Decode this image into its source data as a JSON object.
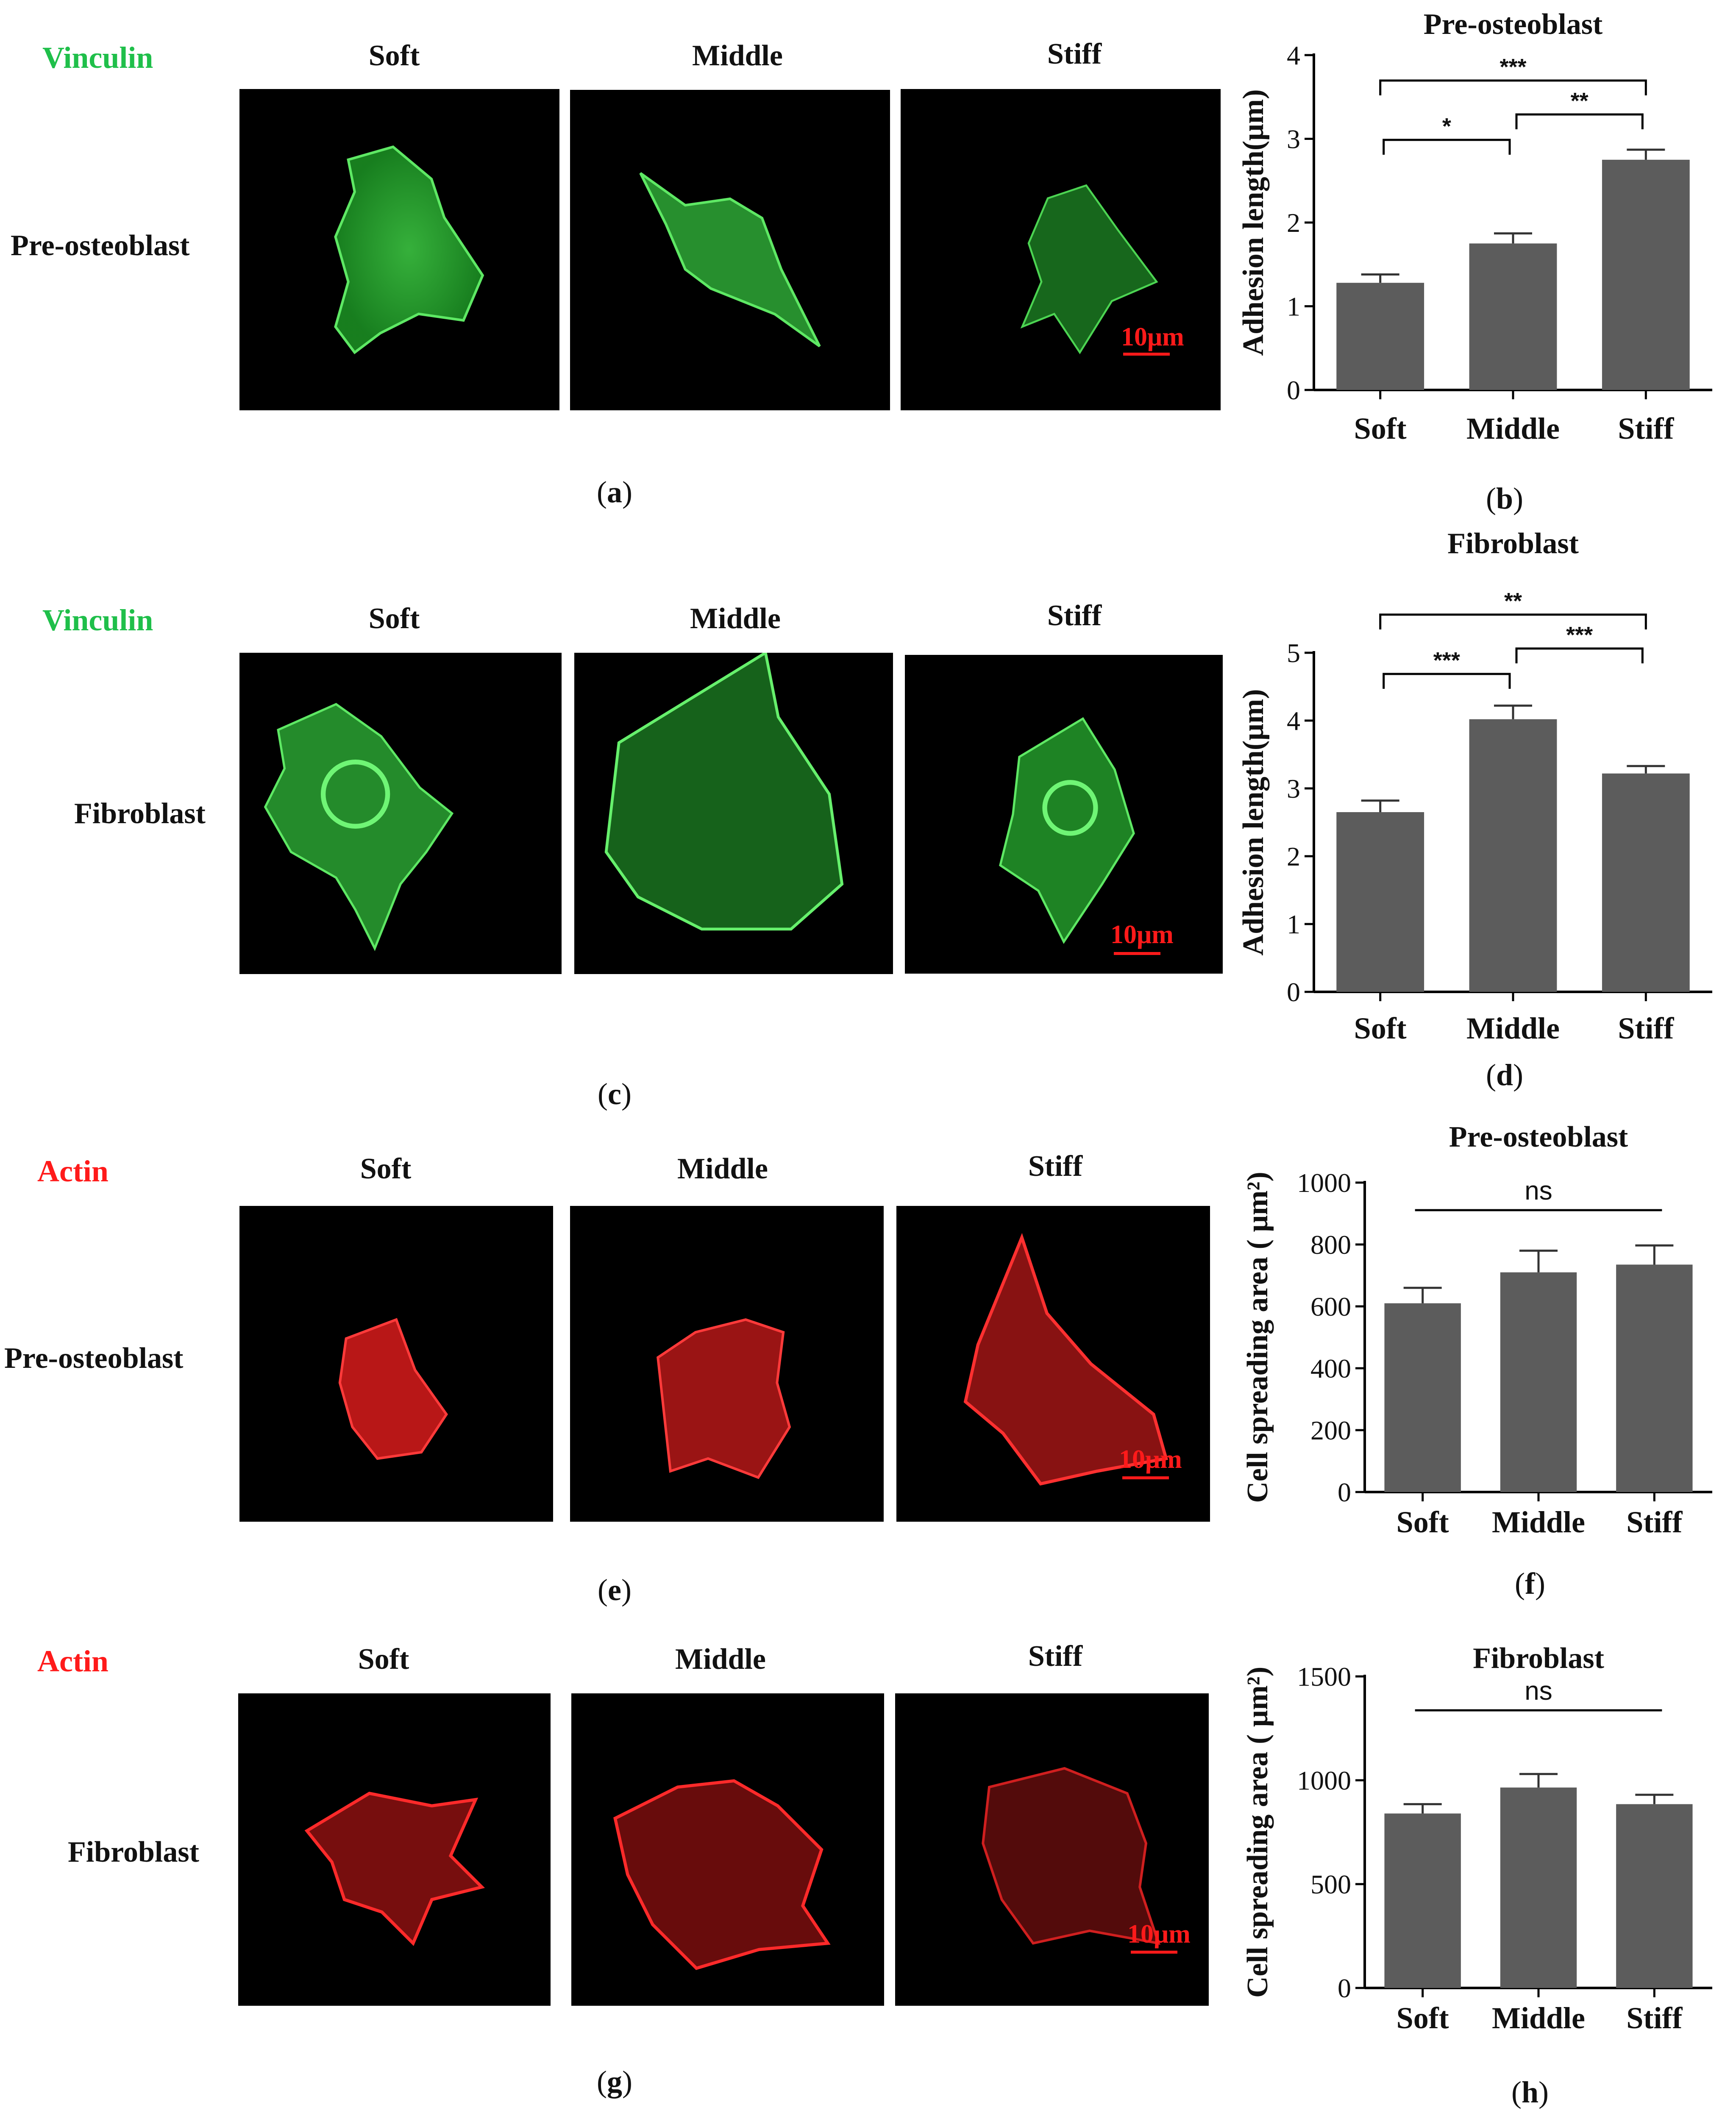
{
  "colors": {
    "vinculin": "#1fbf4a",
    "actin": "#ff1a1a",
    "bar": "#5c5c5c",
    "cell_green": "#39d13f",
    "cell_red": "#ff2020"
  },
  "conditions": [
    "Soft",
    "Middle",
    "Stiff"
  ],
  "scale_bar_label": "10μm",
  "row_a": {
    "stain": "Vinculin",
    "cell": "Pre-osteoblast",
    "letter": "a"
  },
  "row_c": {
    "stain": "Vinculin",
    "cell": "Fibroblast",
    "letter": "c"
  },
  "row_e": {
    "stain": "Actin",
    "cell": "Pre-osteoblast",
    "letter": "e"
  },
  "row_g": {
    "stain": "Actin",
    "cell": "Fibroblast",
    "letter": "g"
  },
  "chart_data": [
    {
      "panel": "b",
      "type": "bar",
      "title": "Pre-osteoblast",
      "categories": [
        "Soft",
        "Middle",
        "Stiff"
      ],
      "values": [
        1.28,
        1.75,
        2.75
      ],
      "errors": [
        0.1,
        0.12,
        0.12
      ],
      "ylabel": "Adhesion length(μm)",
      "xlabel": "",
      "ylim": [
        0,
        4
      ],
      "yticks": [
        0,
        1,
        2,
        3,
        4
      ],
      "significance": [
        {
          "from": 0,
          "to": 1,
          "label": "*"
        },
        {
          "from": 1,
          "to": 2,
          "label": "**"
        },
        {
          "from": 0,
          "to": 2,
          "label": "***"
        }
      ]
    },
    {
      "panel": "d",
      "type": "bar",
      "title": "Fibroblast",
      "categories": [
        "Soft",
        "Middle",
        "Stiff"
      ],
      "values": [
        2.65,
        4.02,
        3.22
      ],
      "errors": [
        0.17,
        0.2,
        0.11
      ],
      "ylabel": "Adhesion length(μm)",
      "xlabel": "",
      "ylim": [
        0,
        5
      ],
      "yticks": [
        0,
        1,
        2,
        3,
        4,
        5
      ],
      "significance": [
        {
          "from": 0,
          "to": 1,
          "label": "***"
        },
        {
          "from": 1,
          "to": 2,
          "label": "***"
        },
        {
          "from": 0,
          "to": 2,
          "label": "**"
        }
      ]
    },
    {
      "panel": "f",
      "type": "bar",
      "title": "Pre-osteoblast",
      "categories": [
        "Soft",
        "Middle",
        "Stiff"
      ],
      "values": [
        610,
        710,
        735
      ],
      "errors": [
        50,
        70,
        62
      ],
      "ylabel": "Cell spreading area ( μm²)",
      "xlabel": "",
      "ylim": [
        0,
        1000
      ],
      "yticks": [
        0,
        200,
        400,
        600,
        800,
        1000
      ],
      "significance": [
        {
          "from": 0,
          "to": 2,
          "label": "ns"
        }
      ]
    },
    {
      "panel": "h",
      "type": "bar",
      "title": "Fibroblast",
      "categories": [
        "Soft",
        "Middle",
        "Stiff"
      ],
      "values": [
        840,
        965,
        885
      ],
      "errors": [
        45,
        65,
        45
      ],
      "ylabel": "Cell spreading area ( μm²)",
      "xlabel": "",
      "ylim": [
        0,
        1500
      ],
      "yticks": [
        0,
        500,
        1000,
        1500
      ],
      "significance": [
        {
          "from": 0,
          "to": 2,
          "label": "ns"
        }
      ]
    }
  ]
}
